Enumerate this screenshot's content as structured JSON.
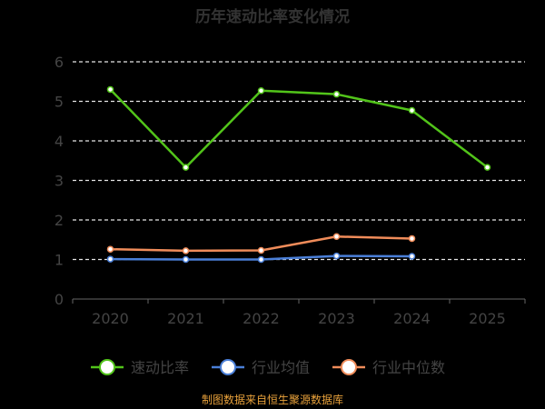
{
  "chart_data": {
    "type": "line",
    "title": "历年速动比率变化情况",
    "xlabel": "",
    "ylabel": "",
    "categories": [
      "2020",
      "2021",
      "2022",
      "2023",
      "2024",
      "2025"
    ],
    "ylim": [
      0,
      6
    ],
    "yticks": [
      "0",
      "1",
      "2",
      "3",
      "4",
      "5",
      "6"
    ],
    "grid": true,
    "legend_position": "bottom",
    "series": [
      {
        "name": "速动比率",
        "color": "#52c41a",
        "values": [
          5.3,
          3.33,
          5.27,
          5.18,
          4.77,
          3.33
        ]
      },
      {
        "name": "行业均值",
        "color": "#4a7fd8",
        "values": [
          1.01,
          1.0,
          1.0,
          1.09,
          1.08,
          null
        ]
      },
      {
        "name": "行业中位数",
        "color": "#f08c5a",
        "values": [
          1.26,
          1.22,
          1.23,
          1.58,
          1.53,
          null
        ]
      }
    ],
    "source": "制图数据来自恒生聚源数据库"
  }
}
